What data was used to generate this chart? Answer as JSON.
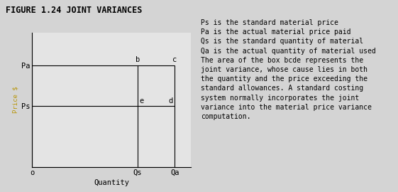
{
  "title": "FIGURE 1.24 JOINT VARIANCES",
  "background_color": "#d4d4d4",
  "plot_bg_color": "#e4e4e4",
  "xlabel": "Quantity",
  "ylabel": "Price $",
  "Pa": 0.72,
  "Ps": 0.43,
  "Qs": 0.65,
  "Qa": 0.88,
  "ylim": [
    0,
    0.95
  ],
  "xlim": [
    0,
    0.98
  ],
  "annotation_text": "Ps is the standard material price\nPa is the actual material price paid\nQs is the standard quantity of material\nQa is the actual quantity of material used\nThe area of the box bcde represents the\njoint variance, whose cause lies in both\nthe quantity and the price exceeding the\nstandard allowances. A standard costing\nsystem normally incorporates the joint\nvariance into the material price variance\ncomputation.",
  "font_family": "monospace",
  "title_fontsize": 8.5,
  "label_fontsize": 7.5,
  "tick_fontsize": 7.5,
  "annotation_fontsize": 7.0,
  "ylabel_color": "#b8960a",
  "ylabel_fontsize": 6.5
}
